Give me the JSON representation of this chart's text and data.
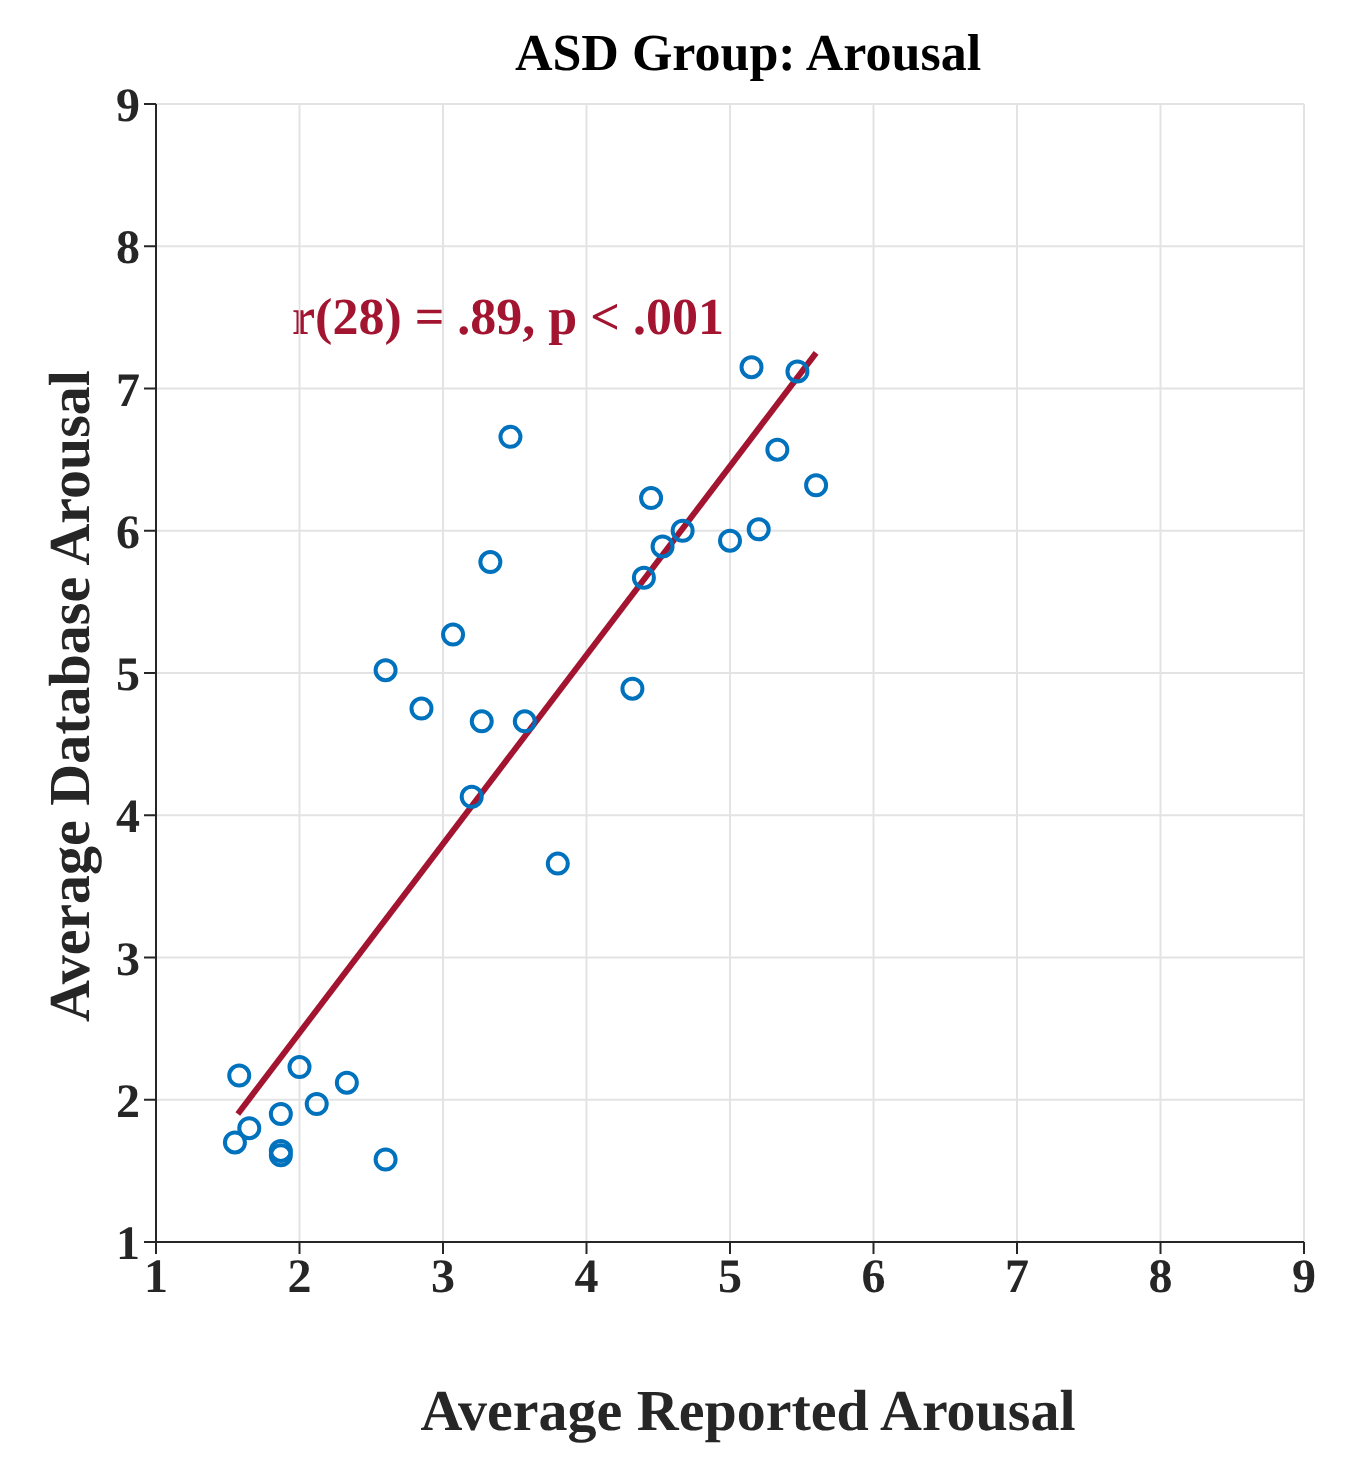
{
  "chart_data": {
    "type": "scatter",
    "title": "ASD Group: Arousal",
    "xlabel": "Average Reported Arousal",
    "ylabel": "Average Database Arousal",
    "annotations": [
      "r(28) = .89, p < .001"
    ],
    "xlim": [
      1,
      9
    ],
    "xticks": [
      1,
      2,
      3,
      4,
      5,
      6,
      7,
      8,
      9
    ],
    "ylim": [
      1,
      9
    ],
    "yticks": [
      1,
      2,
      3,
      4,
      5,
      6,
      7,
      8,
      9
    ],
    "grid": true,
    "marker": "circle",
    "series": [
      {
        "color": "#0072bd",
        "x": [
          1.55,
          1.58,
          1.65,
          1.87,
          1.87,
          1.87,
          2.0,
          2.12,
          2.33,
          2.6,
          2.6,
          2.85,
          3.07,
          3.2,
          3.27,
          3.33,
          3.47,
          3.57,
          3.8,
          4.32,
          4.4,
          4.45,
          4.53,
          4.67,
          5.0,
          5.15,
          5.2,
          5.33,
          5.47,
          5.6
        ],
        "values": [
          1.7,
          2.17,
          1.8,
          1.9,
          1.64,
          1.61,
          2.23,
          1.97,
          2.12,
          1.58,
          5.02,
          4.75,
          5.27,
          4.13,
          4.66,
          5.78,
          6.66,
          4.66,
          3.66,
          4.89,
          5.67,
          6.23,
          5.89,
          6.0,
          5.93,
          7.15,
          6.01,
          6.57,
          7.12,
          6.32
        ]
      },
      {
        "type": "line",
        "color": "#a2142f",
        "marker": "none",
        "x": [
          1.57,
          5.6
        ],
        "values": [
          1.9,
          7.25
        ]
      }
    ]
  }
}
